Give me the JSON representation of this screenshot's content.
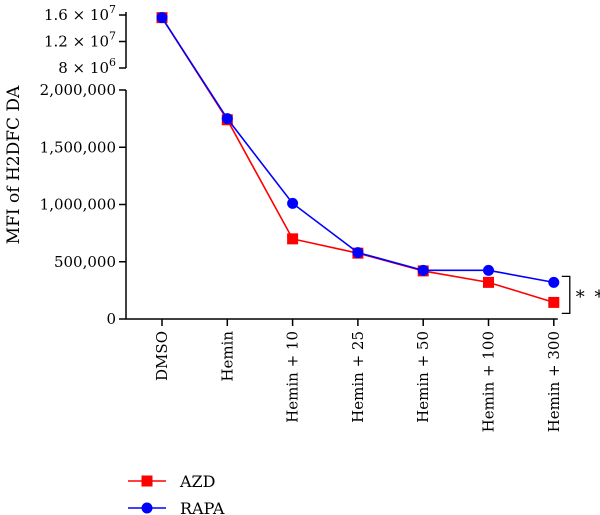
{
  "chart_data": {
    "type": "line",
    "ylabel": "MFI of H2DFC DA",
    "categories": [
      "DMSO",
      "Hemin",
      "Hemin + 10",
      "Hemin + 25",
      "Hemin + 50",
      "Hemin + 100",
      "Hemin + 300"
    ],
    "series": [
      {
        "name": "AZD",
        "color": "#ff0000",
        "marker": "square",
        "values": [
          15600000,
          1740000,
          700000,
          575000,
          420000,
          320000,
          145000
        ]
      },
      {
        "name": "RAPA",
        "color": "#0000ff",
        "marker": "circle",
        "values": [
          15600000,
          1750000,
          1010000,
          580000,
          425000,
          425000,
          320000
        ]
      }
    ],
    "y_axis_lower": {
      "range": [
        0,
        2000000
      ],
      "ticks": [
        0,
        500000,
        1000000,
        1500000,
        2000000
      ],
      "tick_labels": [
        "0",
        "500,000",
        "1,000,000",
        "1,500,000",
        "2,000,000"
      ]
    },
    "y_axis_upper": {
      "range": [
        8000000,
        16000000
      ],
      "ticks": [
        8000000,
        12000000,
        16000000
      ],
      "tick_labels": [
        {
          "coef": "8 × 10",
          "exp": "6"
        },
        {
          "coef": "1.2 × 10",
          "exp": "7"
        },
        {
          "coef": "1.6 × 10",
          "exp": "7"
        }
      ]
    },
    "axis_break": true,
    "legend": {
      "placement": "bottom-left"
    },
    "annotation": {
      "text": "* *",
      "between": "Hemin + 300"
    },
    "grid": false
  }
}
